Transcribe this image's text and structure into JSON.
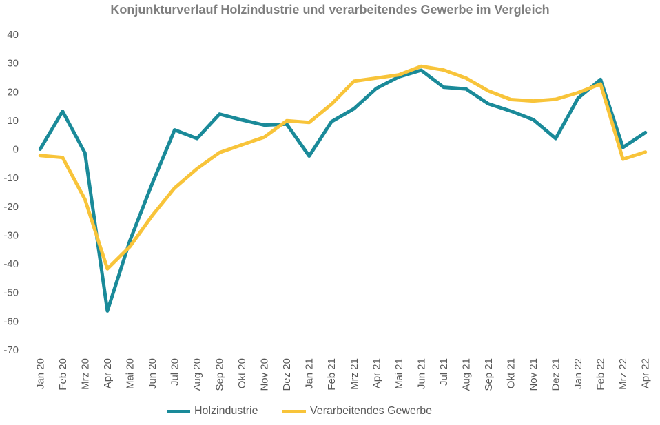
{
  "chart_data": {
    "type": "line",
    "title": "Konjunkturverlauf Holzindustrie und verarbeitendes Gewerbe im Vergleich",
    "xlabel": "",
    "ylabel": "",
    "ylim": [
      -70,
      40
    ],
    "yticks": [
      "40",
      "30",
      "20",
      "10",
      "0",
      "-10",
      "-20",
      "-30",
      "-40",
      "-50",
      "-60",
      "-70"
    ],
    "grid": "zero-line only",
    "legend_position": "bottom",
    "categories": [
      "Jan 20",
      "Feb 20",
      "Mrz 20",
      "Apr 20",
      "Mai 20",
      "Jun 20",
      "Jul 20",
      "Aug 20",
      "Sep 20",
      "Okt 20",
      "Nov 20",
      "Dez 20",
      "Jan 21",
      "Feb 21",
      "Mrz 21",
      "Apr 21",
      "Mai 21",
      "Jun 21",
      "Jul 21",
      "Aug 21",
      "Sep 21",
      "Okt 21",
      "Nov 21",
      "Dez 21",
      "Jan 22",
      "Feb 22",
      "Mrz 22",
      "Apr 22"
    ],
    "series": [
      {
        "name": "Holzindustrie",
        "color": "#1a8a99",
        "values": [
          0,
          13.2,
          -1.3,
          -56.4,
          -32,
          -12,
          6.7,
          3.7,
          12.2,
          10.2,
          8.4,
          8.7,
          -2.4,
          9.6,
          14.1,
          21.2,
          25.2,
          27.5,
          21.6,
          21.0,
          15.8,
          13.3,
          10.3,
          3.7,
          17.8,
          24.3,
          0.6,
          5.8
        ]
      },
      {
        "name": "Verarbeitendes Gewerbe",
        "color": "#f8c43a",
        "values": [
          -2.2,
          -2.9,
          -17.5,
          -41.7,
          -34,
          -23.2,
          -13.5,
          -6.8,
          -1.2,
          1.5,
          4.2,
          9.9,
          9.3,
          15.7,
          23.7,
          24.8,
          25.9,
          28.9,
          27.6,
          24.8,
          20.3,
          17.3,
          16.8,
          17.4,
          19.7,
          22.7,
          -3.5,
          -1.0
        ]
      }
    ]
  }
}
